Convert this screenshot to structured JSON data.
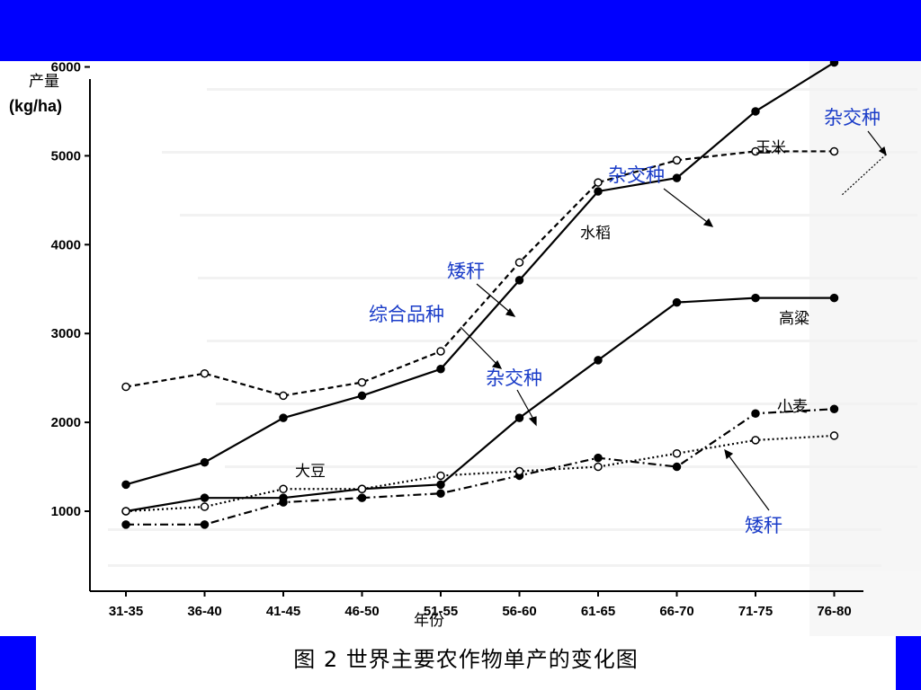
{
  "slide": {
    "caption": "图 2   世界主要农作物单产的变化图",
    "colors": {
      "band": "#0000ff",
      "annotation": "#1a3cc8"
    }
  },
  "chart_data": {
    "type": "line",
    "title": "",
    "ylabel_line1": "产量",
    "ylabel_line2": "(kg/ha)",
    "xlabel": "年份",
    "ylim": [
      600,
      6700
    ],
    "yticks": [
      1000,
      2000,
      3000,
      4000,
      5000,
      6000
    ],
    "categories": [
      "31-35",
      "36-40",
      "41-45",
      "46-50",
      "51-55",
      "56-60",
      "61-65",
      "66-70",
      "71-75",
      "76-80"
    ],
    "series": [
      {
        "name": "玉米",
        "style": "solid-filled",
        "values": [
          1300,
          1550,
          2050,
          2300,
          2600,
          3600,
          4600,
          4750,
          5500,
          6050
        ]
      },
      {
        "name": "水稻",
        "style": "dashed-open",
        "values": [
          2400,
          2550,
          2300,
          2450,
          2800,
          3800,
          4700,
          4950,
          5050,
          5050
        ]
      },
      {
        "name": "高粱",
        "style": "solid-filled",
        "values": [
          1000,
          1150,
          1150,
          1250,
          1300,
          2050,
          2700,
          3350,
          3400,
          3400
        ]
      },
      {
        "name": "小麦",
        "style": "dashdot-filled",
        "values": [
          850,
          850,
          1100,
          1150,
          1200,
          1400,
          1600,
          1500,
          2100,
          2150
        ]
      },
      {
        "name": "大豆",
        "style": "dotted-open",
        "values": [
          1000,
          1050,
          1250,
          1250,
          1400,
          1450,
          1500,
          1650,
          1800,
          1850
        ]
      }
    ],
    "annotations": {
      "corn": "玉米",
      "rice": "水稻",
      "sorghum": "高粱",
      "wheat": "小麦",
      "soybean": "大豆",
      "hybrid_top": "杂交种",
      "hybrid_mid": "杂交种",
      "hybrid_sorghum": "杂交种",
      "dwarf_rice": "矮秆",
      "synthetic": "综合品种",
      "dwarf_wheat": "矮秆"
    },
    "grid": false
  }
}
